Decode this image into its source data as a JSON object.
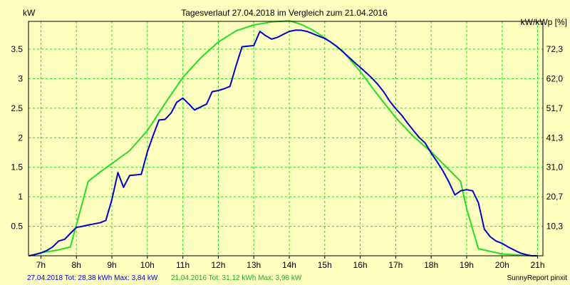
{
  "chart_data": {
    "type": "line",
    "title": "Tagesverlauf 27.04.2018 im Vergleich zum 21.04.2016",
    "ylabel_left": "kW",
    "ylabel_right": "kW/kWp [%]",
    "xlim": [
      6.65,
      21.15
    ],
    "ylim": [
      0,
      3.97
    ],
    "x_ticks": [
      {
        "v": 7,
        "label": "7h"
      },
      {
        "v": 8,
        "label": "8h"
      },
      {
        "v": 9,
        "label": "9h"
      },
      {
        "v": 10,
        "label": "10h"
      },
      {
        "v": 11,
        "label": "11h"
      },
      {
        "v": 12,
        "label": "12h"
      },
      {
        "v": 13,
        "label": "13h"
      },
      {
        "v": 14,
        "label": "14h"
      },
      {
        "v": 15,
        "label": "15h"
      },
      {
        "v": 16,
        "label": "16h"
      },
      {
        "v": 17,
        "label": "17h"
      },
      {
        "v": 18,
        "label": "18h"
      },
      {
        "v": 19,
        "label": "19h"
      },
      {
        "v": 20,
        "label": "20h"
      },
      {
        "v": 21,
        "label": "21h"
      }
    ],
    "y_ticks_left": [
      {
        "v": 0.5,
        "label": "0.5"
      },
      {
        "v": 1,
        "label": "1"
      },
      {
        "v": 1.5,
        "label": "1.5"
      },
      {
        "v": 2,
        "label": "2"
      },
      {
        "v": 2.5,
        "label": "2.5"
      },
      {
        "v": 3,
        "label": "3"
      },
      {
        "v": 3.5,
        "label": "3.5"
      }
    ],
    "y_ticks_right": [
      {
        "v": 0.5,
        "label": "10,3"
      },
      {
        "v": 1,
        "label": "20,7"
      },
      {
        "v": 1.5,
        "label": "31,0"
      },
      {
        "v": 2,
        "label": "41,3"
      },
      {
        "v": 2.5,
        "label": "51,7"
      },
      {
        "v": 3,
        "label": "62,0"
      },
      {
        "v": 3.5,
        "label": "72,3"
      }
    ],
    "grid": true,
    "series": [
      {
        "name": "27.04.2018",
        "color": "#0000cc",
        "points": [
          [
            6.67,
            0.0
          ],
          [
            6.83,
            0.02
          ],
          [
            7.0,
            0.05
          ],
          [
            7.17,
            0.09
          ],
          [
            7.33,
            0.15
          ],
          [
            7.5,
            0.25
          ],
          [
            7.67,
            0.28
          ],
          [
            7.83,
            0.38
          ],
          [
            8.0,
            0.48
          ],
          [
            8.17,
            0.5
          ],
          [
            8.33,
            0.52
          ],
          [
            8.5,
            0.54
          ],
          [
            8.67,
            0.56
          ],
          [
            8.83,
            0.6
          ],
          [
            9.0,
            0.95
          ],
          [
            9.17,
            1.41
          ],
          [
            9.33,
            1.16
          ],
          [
            9.5,
            1.36
          ],
          [
            9.67,
            1.37
          ],
          [
            9.83,
            1.38
          ],
          [
            10.0,
            1.76
          ],
          [
            10.17,
            2.05
          ],
          [
            10.33,
            2.3
          ],
          [
            10.5,
            2.31
          ],
          [
            10.67,
            2.42
          ],
          [
            10.83,
            2.6
          ],
          [
            11.0,
            2.67
          ],
          [
            11.17,
            2.57
          ],
          [
            11.33,
            2.47
          ],
          [
            11.5,
            2.52
          ],
          [
            11.67,
            2.57
          ],
          [
            11.83,
            2.78
          ],
          [
            12.0,
            2.8
          ],
          [
            12.17,
            2.83
          ],
          [
            12.33,
            2.87
          ],
          [
            12.5,
            3.22
          ],
          [
            12.67,
            3.54
          ],
          [
            12.83,
            3.55
          ],
          [
            13.0,
            3.56
          ],
          [
            13.17,
            3.8
          ],
          [
            13.33,
            3.73
          ],
          [
            13.5,
            3.67
          ],
          [
            13.67,
            3.7
          ],
          [
            13.83,
            3.75
          ],
          [
            14.0,
            3.8
          ],
          [
            14.17,
            3.82
          ],
          [
            14.33,
            3.82
          ],
          [
            14.5,
            3.8
          ],
          [
            14.67,
            3.76
          ],
          [
            14.83,
            3.72
          ],
          [
            15.0,
            3.68
          ],
          [
            15.17,
            3.62
          ],
          [
            15.33,
            3.55
          ],
          [
            15.5,
            3.46
          ],
          [
            15.67,
            3.37
          ],
          [
            15.83,
            3.28
          ],
          [
            16.0,
            3.19
          ],
          [
            16.17,
            3.1
          ],
          [
            16.33,
            3.01
          ],
          [
            16.5,
            2.9
          ],
          [
            16.67,
            2.77
          ],
          [
            16.83,
            2.62
          ],
          [
            17.0,
            2.49
          ],
          [
            17.17,
            2.38
          ],
          [
            17.33,
            2.25
          ],
          [
            17.5,
            2.12
          ],
          [
            17.67,
            2.0
          ],
          [
            17.83,
            1.91
          ],
          [
            18.0,
            1.74
          ],
          [
            18.17,
            1.59
          ],
          [
            18.33,
            1.44
          ],
          [
            18.5,
            1.25
          ],
          [
            18.67,
            1.03
          ],
          [
            18.83,
            1.1
          ],
          [
            19.0,
            1.12
          ],
          [
            19.17,
            1.1
          ],
          [
            19.33,
            0.9
          ],
          [
            19.5,
            0.45
          ],
          [
            19.67,
            0.32
          ],
          [
            19.83,
            0.25
          ],
          [
            20.0,
            0.21
          ],
          [
            20.17,
            0.15
          ],
          [
            20.33,
            0.1
          ],
          [
            20.5,
            0.05
          ],
          [
            20.67,
            0.02
          ],
          [
            20.83,
            0.0
          ],
          [
            21.0,
            0.0
          ]
        ]
      },
      {
        "name": "21.04.2016",
        "color": "#22dd22",
        "points": [
          [
            6.67,
            0.0
          ],
          [
            7.0,
            0.05
          ],
          [
            7.5,
            0.1
          ],
          [
            7.83,
            0.15
          ],
          [
            8.33,
            1.26
          ],
          [
            8.67,
            1.42
          ],
          [
            9.0,
            1.56
          ],
          [
            9.5,
            1.78
          ],
          [
            10.0,
            2.12
          ],
          [
            10.5,
            2.58
          ],
          [
            11.0,
            3.02
          ],
          [
            11.5,
            3.35
          ],
          [
            12.0,
            3.62
          ],
          [
            12.5,
            3.81
          ],
          [
            13.0,
            3.91
          ],
          [
            13.5,
            3.96
          ],
          [
            14.0,
            3.98
          ],
          [
            14.33,
            3.92
          ],
          [
            14.67,
            3.82
          ],
          [
            15.0,
            3.69
          ],
          [
            15.5,
            3.47
          ],
          [
            16.0,
            3.12
          ],
          [
            16.5,
            2.72
          ],
          [
            17.0,
            2.34
          ],
          [
            17.5,
            2.02
          ],
          [
            18.0,
            1.76
          ],
          [
            18.5,
            1.46
          ],
          [
            18.83,
            1.26
          ],
          [
            19.0,
            0.8
          ],
          [
            19.33,
            0.12
          ],
          [
            20.0,
            0.03
          ],
          [
            20.83,
            0.0
          ],
          [
            21.0,
            0.0
          ]
        ]
      }
    ],
    "footer": {
      "left": "27.04.2018 Tot: 28,38 kWh Max: 3,84 kW",
      "middle": "21.04.2016 Tot: 31,12 kWh Max: 3,98 kW",
      "right": "SunnyReport pinxit"
    },
    "colors": {
      "background": "#ffffc0",
      "grid": "#22dd22",
      "series_2018": "#0000cc",
      "series_2016": "#22dd22"
    }
  }
}
